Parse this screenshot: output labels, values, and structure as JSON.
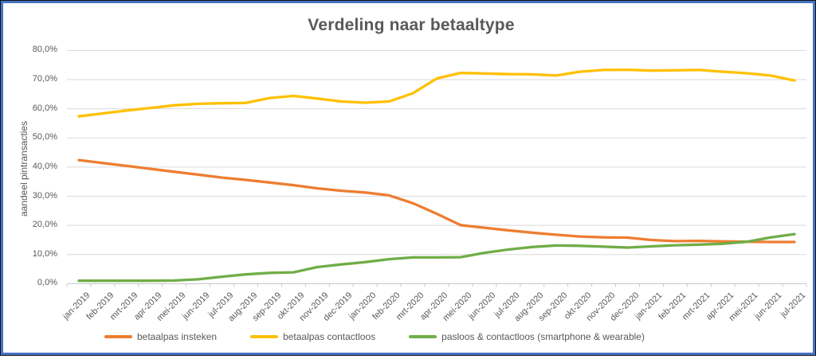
{
  "chart_data": {
    "type": "line",
    "title": "Verdeling naar betaaltype",
    "xlabel": "",
    "ylabel": "aandeel pintransacties",
    "ylim": [
      0,
      80
    ],
    "y_tick_step": 10,
    "y_tick_labels": [
      "0,0%",
      "10,0%",
      "20,0%",
      "30,0%",
      "40,0%",
      "50,0%",
      "60,0%",
      "70,0%",
      "80,0%"
    ],
    "x_tick_rotation": 45,
    "grid": "horizontal",
    "legend_position": "bottom",
    "categories": [
      "jan-2019",
      "feb-2019",
      "mrt-2019",
      "apr-2019",
      "mei-2019",
      "jun-2019",
      "jul-2019",
      "aug-2019",
      "sep-2019",
      "okt-2019",
      "nov-2019",
      "dec-2019",
      "jan-2020",
      "feb-2020",
      "mrt-2020",
      "apr-2020",
      "mei-2020",
      "jun-2020",
      "jul-2020",
      "aug-2020",
      "sep-2020",
      "okt-2020",
      "nov-2020",
      "dec-2020",
      "jan-2021",
      "feb-2021",
      "mrt-2021",
      "apr-2021",
      "mei-2021",
      "jun-2021",
      "jul-2021"
    ],
    "series": [
      {
        "name": "betaalpas insteken",
        "color": "#ED7D31",
        "values": [
          42.4,
          41.4,
          40.4,
          39.4,
          38.4,
          37.4,
          36.4,
          35.6,
          34.7,
          33.8,
          32.7,
          31.9,
          31.3,
          30.3,
          27.6,
          24.0,
          20.1,
          19.2,
          18.3,
          17.5,
          16.8,
          16.2,
          15.9,
          15.8,
          15.0,
          14.6,
          14.7,
          14.5,
          14.4,
          14.3,
          14.3
        ]
      },
      {
        "name": "betaalpas contactloos",
        "color": "#FFC000",
        "values": [
          57.4,
          58.4,
          59.4,
          60.3,
          61.2,
          61.7,
          61.9,
          62.0,
          63.7,
          64.4,
          63.5,
          62.5,
          62.1,
          62.5,
          65.3,
          70.4,
          72.3,
          72.1,
          71.9,
          71.8,
          71.4,
          72.7,
          73.3,
          73.4,
          73.1,
          73.2,
          73.3,
          72.7,
          72.2,
          71.4,
          69.7
        ]
      },
      {
        "name": "pasloos & contactloos (smartphone & wearable)",
        "color": "#70AD47",
        "values": [
          1.0,
          1.0,
          1.0,
          1.0,
          1.1,
          1.5,
          2.4,
          3.2,
          3.7,
          3.9,
          5.7,
          6.6,
          7.4,
          8.4,
          9.0,
          9.0,
          9.1,
          10.6,
          11.7,
          12.6,
          13.1,
          13.0,
          12.7,
          12.4,
          12.8,
          13.2,
          13.4,
          13.7,
          14.4,
          15.9,
          17.0
        ]
      }
    ]
  },
  "style": {
    "frame_border_color": "#4472C4",
    "title_color": "#595959",
    "axis_label_color": "#595959",
    "gridline_color": "#D9D9D9",
    "axis_line_color": "#C9C9C9"
  }
}
